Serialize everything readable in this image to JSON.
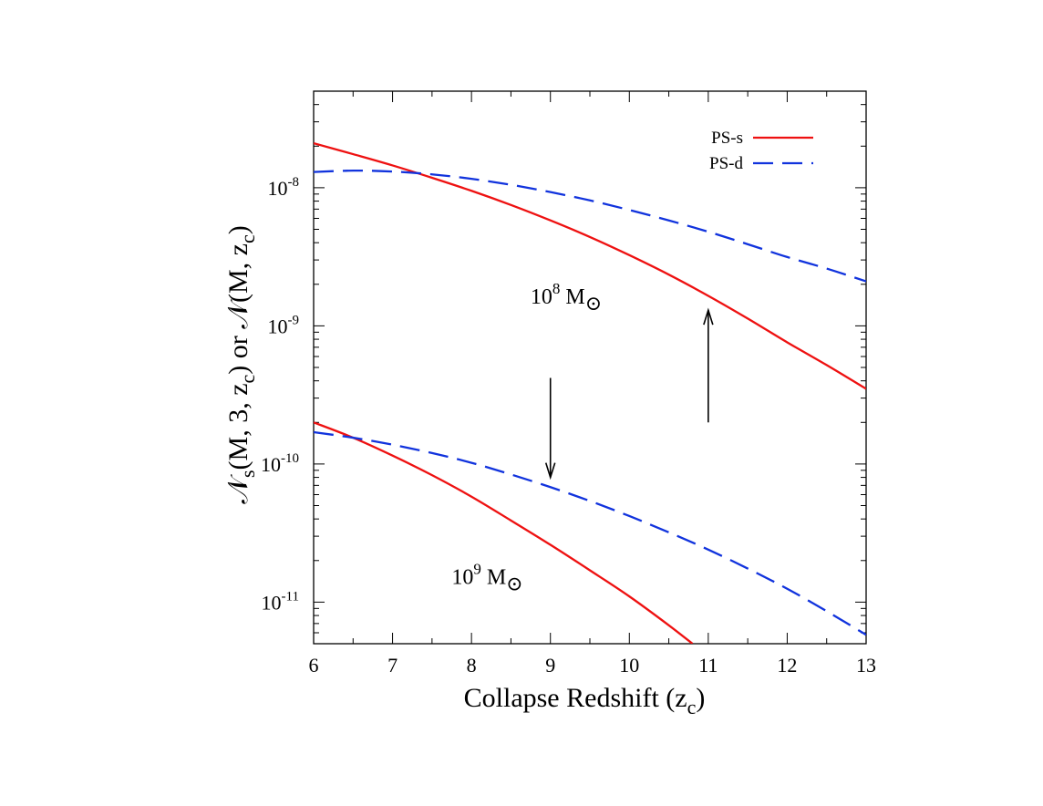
{
  "chart_data": {
    "type": "line",
    "xlabel": "Collapse Redshift (z",
    "xlabel_sub": "c",
    "xlabel_tail": ")",
    "ylabel": "𝒩s(M, 3, zc) or 𝒩(M, zc)",
    "ylabel_parts": [
      "𝒩",
      "s",
      "(M, 3, z",
      "c",
      ") or 𝒩(M, z",
      "c",
      ")"
    ],
    "xlim": [
      6,
      13
    ],
    "ylim": [
      5e-12,
      5e-08
    ],
    "yscale": "log",
    "grid": false,
    "legend_position": "top-right",
    "x_ticks": [
      "6",
      "7",
      "8",
      "9",
      "10",
      "11",
      "12",
      "13"
    ],
    "y_ticks": [
      {
        "base": "10",
        "exp": "-8",
        "value": 1e-08
      },
      {
        "base": "10",
        "exp": "-9",
        "value": 1e-09
      },
      {
        "base": "10",
        "exp": "-10",
        "value": 1e-10
      },
      {
        "base": "10",
        "exp": "-11",
        "value": 1e-11
      }
    ],
    "series": [
      {
        "name": "PS-s",
        "group": "10^8",
        "color": "#ee1111",
        "dash": "solid",
        "x": [
          6,
          6.5,
          7,
          7.5,
          8,
          8.5,
          9,
          9.5,
          10,
          10.5,
          11,
          11.5,
          12,
          12.5,
          13
        ],
        "y": [
          2.1e-08,
          1.75e-08,
          1.45e-08,
          1.18e-08,
          9.5e-09,
          7.5e-09,
          5.8e-09,
          4.4e-09,
          3.25e-09,
          2.35e-09,
          1.65e-09,
          1.13e-09,
          7.6e-10,
          5.2e-10,
          3.5e-10
        ]
      },
      {
        "name": "PS-d",
        "group": "10^8",
        "color": "#1133dd",
        "dash": "dashed",
        "x": [
          6,
          6.5,
          7,
          7.5,
          8,
          8.5,
          9,
          9.5,
          10,
          10.5,
          11,
          11.5,
          12,
          12.5,
          13
        ],
        "y": [
          1.3e-08,
          1.33e-08,
          1.31e-08,
          1.25e-08,
          1.16e-08,
          1.05e-08,
          9.3e-09,
          8.1e-09,
          6.9e-09,
          5.8e-09,
          4.8e-09,
          3.9e-09,
          3.15e-09,
          2.6e-09,
          2.1e-09
        ]
      },
      {
        "name": "PS-s",
        "group": "10^9",
        "color": "#ee1111",
        "dash": "solid",
        "x": [
          6,
          6.5,
          7,
          7.5,
          8,
          8.5,
          9,
          9.5,
          10,
          10.5,
          10.8
        ],
        "y": [
          2e-10,
          1.55e-10,
          1.15e-10,
          8.3e-11,
          5.8e-11,
          3.9e-11,
          2.6e-11,
          1.7e-11,
          1.1e-11,
          6.8e-12,
          5e-12
        ]
      },
      {
        "name": "PS-d",
        "group": "10^9",
        "color": "#1133dd",
        "dash": "dashed",
        "x": [
          6,
          6.5,
          7,
          7.5,
          8,
          8.5,
          9,
          9.5,
          10,
          10.5,
          11,
          11.5,
          12,
          12.5,
          13
        ],
        "y": [
          1.7e-10,
          1.55e-10,
          1.38e-10,
          1.2e-10,
          1.02e-10,
          8.4e-11,
          6.8e-11,
          5.4e-11,
          4.2e-11,
          3.2e-11,
          2.4e-11,
          1.75e-11,
          1.25e-11,
          8.6e-12,
          5.8e-12
        ]
      }
    ],
    "legend": [
      {
        "label": "PS-s",
        "color": "#ee1111",
        "dash": "solid"
      },
      {
        "label": "PS-d",
        "color": "#1133dd",
        "dash": "dashed"
      }
    ],
    "annotations": [
      {
        "text": "10",
        "sup": "8",
        "tail": " M",
        "symbol": "⊙",
        "x": 9.2,
        "y": 1.45e-09
      },
      {
        "text": "10",
        "sup": "9",
        "tail": " M",
        "symbol": "⊙",
        "x": 8.2,
        "y": 1.35e-11
      }
    ],
    "arrows": [
      {
        "x": 11,
        "y_from": 2e-10,
        "y_to": 1.3e-09,
        "direction": "up"
      },
      {
        "x": 9,
        "y_from": 4.2e-10,
        "y_to": 8e-11,
        "direction": "down"
      }
    ]
  }
}
